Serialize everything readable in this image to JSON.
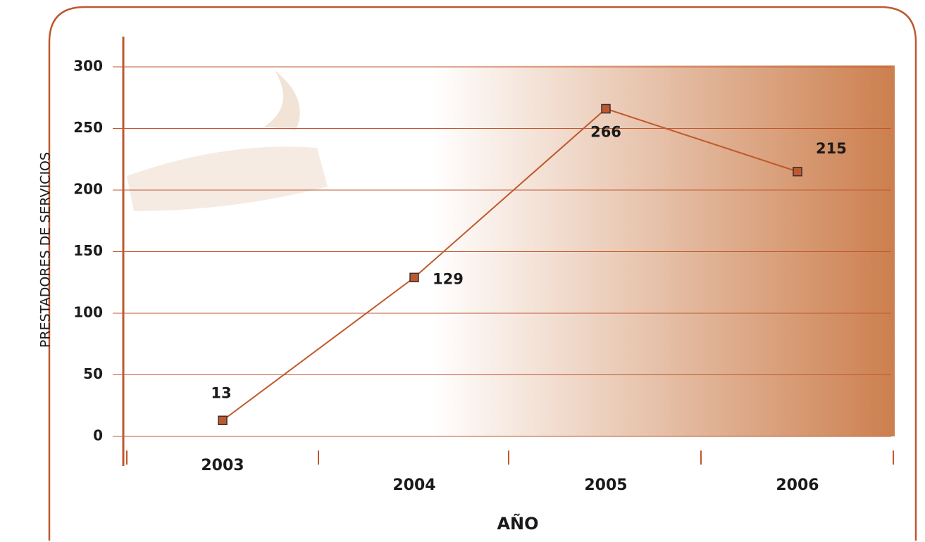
{
  "chart_data": {
    "type": "line",
    "x_label": "AÑO",
    "y_label": "PRESTADORES DE SERVICIOS",
    "categories": [
      "2003",
      "2004",
      "2005",
      "2006"
    ],
    "series": [
      {
        "name": "Prestadores de servicios",
        "color": "#c0582e",
        "values": [
          13,
          129,
          266,
          215
        ]
      }
    ],
    "ylim": [
      0,
      300
    ],
    "yticks": [
      0,
      50,
      100,
      150,
      200,
      250,
      300
    ],
    "grid": true
  }
}
